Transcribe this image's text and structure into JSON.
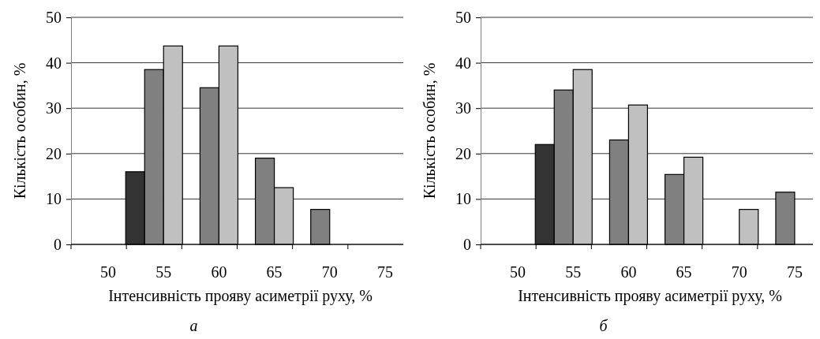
{
  "chart_data": [
    {
      "type": "bar",
      "xlabel": "Інтенсивність прояву асиметрії руху, %",
      "ylabel": "Кількість особин, %",
      "categories": [
        "50",
        "55",
        "60",
        "65",
        "70",
        "75"
      ],
      "series": [
        {
          "color": "#333333",
          "values": [
            null,
            16,
            null,
            null,
            null,
            null
          ]
        },
        {
          "color": "#808080",
          "values": [
            null,
            38.5,
            34.5,
            19,
            7.7,
            null
          ]
        },
        {
          "color": "#c0c0c0",
          "values": [
            null,
            43.7,
            43.7,
            12.5,
            null,
            null
          ]
        }
      ],
      "ylim": [
        0,
        50
      ],
      "yticks": [
        0,
        10,
        20,
        30,
        40,
        50
      ],
      "grid": "y",
      "annotations": [
        "а"
      ]
    },
    {
      "type": "bar",
      "xlabel": "Інтенсивність прояву асиметрії руху, %",
      "ylabel": "Кількість особин, %",
      "categories": [
        "50",
        "55",
        "60",
        "65",
        "70",
        "75"
      ],
      "series": [
        {
          "color": "#333333",
          "values": [
            null,
            22,
            null,
            null,
            null,
            null
          ]
        },
        {
          "color": "#808080",
          "values": [
            null,
            34,
            23,
            15.4,
            null,
            11.5
          ]
        },
        {
          "color": "#c0c0c0",
          "values": [
            null,
            38.5,
            30.7,
            19.2,
            7.7,
            null
          ]
        }
      ],
      "ylim": [
        0,
        50
      ],
      "yticks": [
        0,
        10,
        20,
        30,
        40,
        50
      ],
      "grid": "y",
      "annotations": [
        "б"
      ]
    }
  ]
}
